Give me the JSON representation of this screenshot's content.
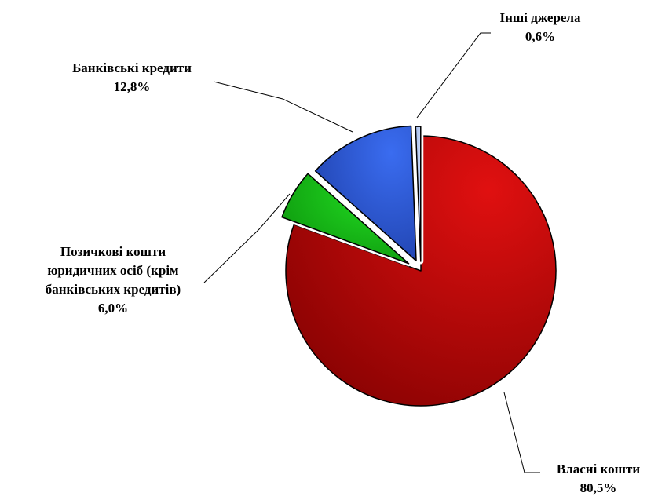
{
  "chart_data": {
    "type": "pie",
    "title": "",
    "exploded": true,
    "start_angle_deg": 0,
    "direction": "clockwise",
    "slices": [
      {
        "label": [
          "Власні кошти"
        ],
        "value": 80.5,
        "value_text": "80,5%",
        "color": "#e01010",
        "color_dark": "#7a0000"
      },
      {
        "label": [
          "Позичкові кошти",
          "юридичних осіб (крім",
          "банківських кредитів)"
        ],
        "value": 6.0,
        "value_text": "6,0%",
        "color": "#22dd22",
        "color_dark": "#0a8a0a"
      },
      {
        "label": [
          "Банківські кредити"
        ],
        "value": 12.8,
        "value_text": "12,8%",
        "color": "#3a6cf0",
        "color_dark": "#1b3aa0"
      },
      {
        "label": [
          "Інші джерела"
        ],
        "value": 0.6,
        "value_text": "0,6%",
        "color": "#c8d8f8",
        "color_dark": "#8aa8e0"
      }
    ]
  }
}
